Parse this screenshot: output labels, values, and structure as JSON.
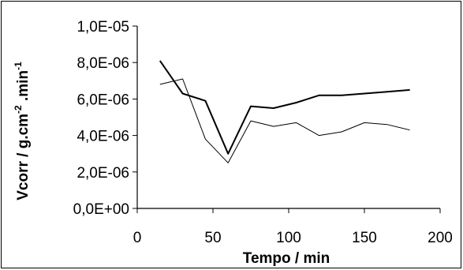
{
  "chart_data": {
    "type": "line",
    "xlabel": "Tempo / min",
    "ylabel": {
      "prefix": "Vcorr / g.cm",
      "sup1": "-2",
      "middle": " .min",
      "sup2": "-1"
    },
    "xlim": [
      0,
      200
    ],
    "ylim": [
      0,
      1e-05
    ],
    "x_ticks": [
      0,
      50,
      100,
      150,
      200
    ],
    "x_tick_labels": [
      "0",
      "50",
      "100",
      "150",
      "200"
    ],
    "y_ticks": [
      0,
      2e-06,
      4e-06,
      6e-06,
      8e-06,
      1e-05
    ],
    "y_tick_labels": [
      "0,0E+00",
      "2,0E-06",
      "4,0E-06",
      "6,0E-06",
      "8,0E-06",
      "1,0E-05"
    ],
    "grid": false,
    "legend": "none",
    "series": [
      {
        "color": "#000000",
        "stroke": "dark",
        "x": [
          15,
          30,
          45,
          60,
          75,
          90,
          105,
          120,
          135,
          150,
          165,
          180
        ],
        "y": [
          8.1e-06,
          6.3e-06,
          5.9e-06,
          3e-06,
          5.6e-06,
          5.5e-06,
          5.8e-06,
          6.2e-06,
          6.2e-06,
          6.3e-06,
          6.4e-06,
          6.5e-06
        ]
      },
      {
        "color": "#000000",
        "stroke": "light",
        "x": [
          15,
          30,
          45,
          60,
          75,
          90,
          105,
          120,
          135,
          150,
          165,
          180
        ],
        "y": [
          6.8e-06,
          7.1e-06,
          3.8e-06,
          2.5e-06,
          4.8e-06,
          4.5e-06,
          4.7e-06,
          4e-06,
          4.2e-06,
          4.7e-06,
          4.6e-06,
          4.3e-06
        ]
      }
    ]
  }
}
